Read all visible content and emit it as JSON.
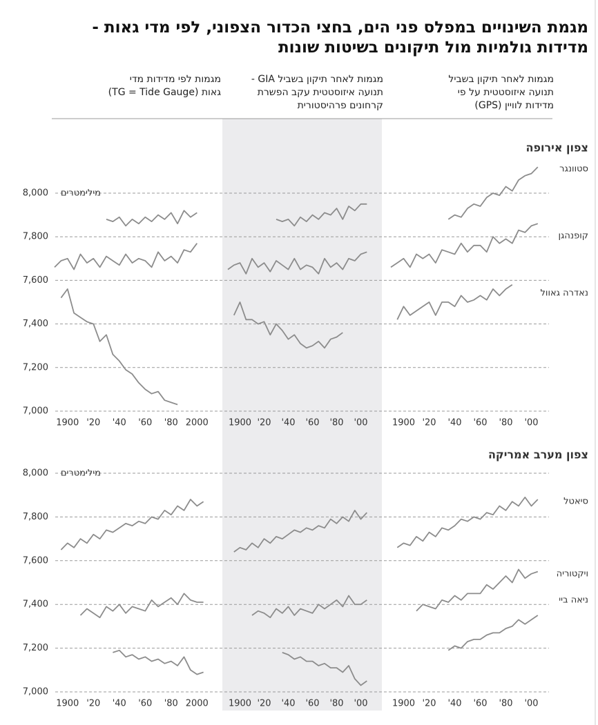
{
  "title_lines": [
    "מגמת השינויים במפלס פני הים, בחצי הכדור הצפוני, לפי מדי גאות -",
    "מדידות גולמיות מול תיקונים בשיטות שונות"
  ],
  "column_headers": [
    [
      "מגמות לפי מדידות מדי",
      "גאות (TG = Tide Gauge)"
    ],
    [
      "מגמות לאחר תיקון בשביל GIA -",
      "תנועה איזוסטטית עקב הפשרת",
      "קרחונים פרהיסטורית"
    ],
    [
      "מגמות לאחר תיקון בשביל",
      "תנועה איזוסטטית על פי",
      "מדידות לוויין (GPS)"
    ]
  ],
  "chart_data": [
    {
      "type": "line",
      "title": "צפון אירופה",
      "y_label": "מילימטרים",
      "ylim": [
        7000,
        8000
      ],
      "yticks": [
        {
          "value": 7000,
          "label": "7,000"
        },
        {
          "value": 7200,
          "label": "7,200"
        },
        {
          "value": 7400,
          "label": "7,400"
        },
        {
          "value": 7600,
          "label": "7,600"
        },
        {
          "value": 7800,
          "label": "7,800"
        },
        {
          "value": 8000,
          "label": "8,000"
        }
      ],
      "color": "#8c8c8c",
      "subplots": [
        {
          "xlim": [
            1890,
            2010
          ],
          "xticks": [
            1900,
            {
              "value": 1920,
              "label": "'20"
            },
            {
              "value": 1940,
              "label": "'40"
            },
            {
              "value": 1960,
              "label": "'60"
            },
            {
              "value": 1980,
              "label": "'80"
            },
            2000
          ],
          "x": [
            1890,
            1895,
            1900,
            1905,
            1910,
            1915,
            1920,
            1925,
            1930,
            1935,
            1940,
            1945,
            1950,
            1955,
            1960,
            1965,
            1970,
            1975,
            1980,
            1985,
            1990,
            1995,
            2000,
            2005
          ],
          "series": [
            {
              "values": [
                null,
                null,
                null,
                null,
                null,
                null,
                null,
                null,
                7880,
                7870,
                7890,
                7850,
                7880,
                7860,
                7890,
                7870,
                7900,
                7880,
                7910,
                7860,
                7920,
                7890,
                7910,
                null
              ]
            },
            {
              "values": [
                7660,
                7690,
                7700,
                7650,
                7720,
                7680,
                7700,
                7660,
                7710,
                7690,
                7670,
                7720,
                7680,
                7700,
                7690,
                7660,
                7730,
                7690,
                7710,
                7680,
                7740,
                7730,
                7770,
                null
              ]
            },
            {
              "values": [
                null,
                7520,
                7560,
                7450,
                7430,
                7410,
                7400,
                7320,
                7350,
                7260,
                7230,
                7190,
                7170,
                7130,
                7100,
                7080,
                7090,
                7050,
                7040,
                7030,
                null,
                null,
                null,
                null
              ]
            }
          ]
        },
        {
          "xlim": [
            1890,
            2010
          ],
          "xticks": [
            1900,
            {
              "value": 1920,
              "label": "'20"
            },
            {
              "value": 1940,
              "label": "'40"
            },
            {
              "value": 1960,
              "label": "'60"
            },
            {
              "value": 1980,
              "label": "'80"
            },
            {
              "value": 2000,
              "label": "'00"
            }
          ],
          "x": [
            1890,
            1895,
            1900,
            1905,
            1910,
            1915,
            1920,
            1925,
            1930,
            1935,
            1940,
            1945,
            1950,
            1955,
            1960,
            1965,
            1970,
            1975,
            1980,
            1985,
            1990,
            1995,
            2000,
            2005
          ],
          "series": [
            {
              "values": [
                null,
                null,
                null,
                null,
                null,
                null,
                null,
                null,
                7880,
                7870,
                7880,
                7850,
                7890,
                7870,
                7900,
                7880,
                7910,
                7900,
                7930,
                7880,
                7940,
                7920,
                7950,
                7950
              ]
            },
            {
              "values": [
                7650,
                7670,
                7680,
                7630,
                7700,
                7660,
                7680,
                7640,
                7690,
                7670,
                7650,
                7700,
                7650,
                7670,
                7660,
                7630,
                7700,
                7660,
                7680,
                7650,
                7700,
                7690,
                7720,
                7730
              ]
            },
            {
              "values": [
                null,
                7440,
                7500,
                7420,
                7420,
                7400,
                7410,
                7350,
                7400,
                7370,
                7330,
                7350,
                7310,
                7290,
                7300,
                7320,
                7290,
                7330,
                7340,
                7360,
                null,
                null,
                null,
                null
              ]
            }
          ]
        },
        {
          "xlim": [
            1890,
            2010
          ],
          "xticks": [
            1900,
            {
              "value": 1920,
              "label": "'20"
            },
            {
              "value": 1940,
              "label": "'40"
            },
            {
              "value": 1960,
              "label": "'60"
            },
            {
              "value": 1980,
              "label": "'80"
            },
            {
              "value": 2000,
              "label": "'00"
            }
          ],
          "x": [
            1890,
            1895,
            1900,
            1905,
            1910,
            1915,
            1920,
            1925,
            1930,
            1935,
            1940,
            1945,
            1950,
            1955,
            1960,
            1965,
            1970,
            1975,
            1980,
            1985,
            1990,
            1995,
            2000,
            2005
          ],
          "series": [
            {
              "name": "סטוונגר",
              "values": [
                null,
                null,
                null,
                null,
                null,
                null,
                null,
                null,
                null,
                7880,
                7900,
                7890,
                7930,
                7950,
                7940,
                7980,
                8000,
                7990,
                8030,
                8010,
                8060,
                8080,
                8090,
                8120
              ]
            },
            {
              "name": "קופנהגן",
              "values": [
                7660,
                7680,
                7700,
                7660,
                7720,
                7700,
                7720,
                7680,
                7740,
                7730,
                7720,
                7770,
                7730,
                7760,
                7760,
                7730,
                7800,
                7770,
                7790,
                7770,
                7830,
                7820,
                7850,
                7860
              ]
            },
            {
              "name": "נאדרה גאוול",
              "values": [
                null,
                7420,
                7480,
                7440,
                7460,
                7480,
                7500,
                7440,
                7500,
                7500,
                7480,
                7530,
                7500,
                7510,
                7530,
                7510,
                7560,
                7530,
                7560,
                7580,
                null,
                null,
                null,
                null
              ]
            }
          ]
        }
      ]
    },
    {
      "type": "line",
      "title": "צפון מערב אמריקה",
      "y_label": "מילימטרים",
      "ylim": [
        7000,
        8000
      ],
      "yticks": [
        {
          "value": 7000,
          "label": "7,000"
        },
        {
          "value": 7200,
          "label": "7,200"
        },
        {
          "value": 7400,
          "label": "7,400"
        },
        {
          "value": 7600,
          "label": "7,600"
        },
        {
          "value": 7800,
          "label": "7,800"
        },
        {
          "value": 8000,
          "label": "8,000"
        }
      ],
      "color": "#8c8c8c",
      "subplots": [
        {
          "xlim": [
            1890,
            2010
          ],
          "xticks": [
            1900,
            {
              "value": 1920,
              "label": "'20"
            },
            {
              "value": 1940,
              "label": "'40"
            },
            {
              "value": 1960,
              "label": "'60"
            },
            {
              "value": 1980,
              "label": "'80"
            },
            2000
          ],
          "x": [
            1890,
            1895,
            1900,
            1905,
            1910,
            1915,
            1920,
            1925,
            1930,
            1935,
            1940,
            1945,
            1950,
            1955,
            1960,
            1965,
            1970,
            1975,
            1980,
            1985,
            1990,
            1995,
            2000,
            2005
          ],
          "series": [
            {
              "values": [
                null,
                7650,
                7680,
                7660,
                7700,
                7680,
                7720,
                7700,
                7740,
                7730,
                7750,
                7770,
                7760,
                7780,
                7770,
                7800,
                7790,
                7830,
                7810,
                7850,
                7830,
                7880,
                7850,
                7870
              ]
            },
            {
              "values": [
                null,
                null,
                null,
                null,
                7350,
                7380,
                7360,
                7340,
                7390,
                7370,
                7400,
                7360,
                7390,
                7380,
                7370,
                7420,
                7390,
                7410,
                7430,
                7400,
                7450,
                7420,
                7410,
                7410
              ]
            },
            {
              "values": [
                null,
                null,
                null,
                null,
                null,
                null,
                null,
                null,
                null,
                7180,
                7190,
                7160,
                7170,
                7150,
                7160,
                7140,
                7150,
                7130,
                7140,
                7120,
                7160,
                7100,
                7080,
                7090
              ]
            }
          ]
        },
        {
          "xlim": [
            1890,
            2010
          ],
          "xticks": [
            1900,
            {
              "value": 1920,
              "label": "'20"
            },
            {
              "value": 1940,
              "label": "'40"
            },
            {
              "value": 1960,
              "label": "'60"
            },
            {
              "value": 1980,
              "label": "'80"
            },
            {
              "value": 2000,
              "label": "'00"
            }
          ],
          "x": [
            1890,
            1895,
            1900,
            1905,
            1910,
            1915,
            1920,
            1925,
            1930,
            1935,
            1940,
            1945,
            1950,
            1955,
            1960,
            1965,
            1970,
            1975,
            1980,
            1985,
            1990,
            1995,
            2000,
            2005
          ],
          "series": [
            {
              "values": [
                null,
                7640,
                7660,
                7650,
                7680,
                7660,
                7700,
                7680,
                7710,
                7700,
                7720,
                7740,
                7730,
                7750,
                7740,
                7760,
                7750,
                7790,
                7770,
                7800,
                7780,
                7830,
                7790,
                7820
              ]
            },
            {
              "values": [
                null,
                null,
                null,
                null,
                7350,
                7370,
                7360,
                7340,
                7380,
                7360,
                7390,
                7350,
                7380,
                7370,
                7360,
                7400,
                7380,
                7400,
                7420,
                7390,
                7440,
                7400,
                7400,
                7420
              ]
            },
            {
              "values": [
                null,
                null,
                null,
                null,
                null,
                null,
                null,
                null,
                null,
                7180,
                7170,
                7150,
                7160,
                7140,
                7140,
                7120,
                7130,
                7110,
                7110,
                7090,
                7120,
                7060,
                7030,
                7050
              ]
            }
          ]
        },
        {
          "xlim": [
            1890,
            2010
          ],
          "xticks": [
            1900,
            {
              "value": 1920,
              "label": "'20"
            },
            {
              "value": 1940,
              "label": "'40"
            },
            {
              "value": 1960,
              "label": "'60"
            },
            {
              "value": 1980,
              "label": "'80"
            },
            {
              "value": 2000,
              "label": "'00"
            }
          ],
          "x": [
            1890,
            1895,
            1900,
            1905,
            1910,
            1915,
            1920,
            1925,
            1930,
            1935,
            1940,
            1945,
            1950,
            1955,
            1960,
            1965,
            1970,
            1975,
            1980,
            1985,
            1990,
            1995,
            2000,
            2005
          ],
          "series": [
            {
              "name": "סיאטל",
              "values": [
                null,
                7660,
                7680,
                7670,
                7710,
                7690,
                7730,
                7710,
                7750,
                7740,
                7760,
                7790,
                7780,
                7800,
                7790,
                7820,
                7810,
                7850,
                7830,
                7870,
                7850,
                7890,
                7850,
                7880
              ]
            },
            {
              "name": "ויקטוריה",
              "values": [
                null,
                null,
                null,
                null,
                7370,
                7400,
                7390,
                7380,
                7420,
                7410,
                7440,
                7420,
                7450,
                7450,
                7450,
                7490,
                7470,
                7500,
                7530,
                7500,
                7560,
                7520,
                7540,
                7550
              ]
            },
            {
              "name": "ניאה ביי",
              "values": [
                null,
                null,
                null,
                null,
                null,
                null,
                null,
                null,
                null,
                7190,
                7210,
                7200,
                7230,
                7240,
                7240,
                7260,
                7270,
                7270,
                7290,
                7300,
                7330,
                7310,
                7330,
                7350
              ]
            }
          ]
        }
      ]
    }
  ]
}
